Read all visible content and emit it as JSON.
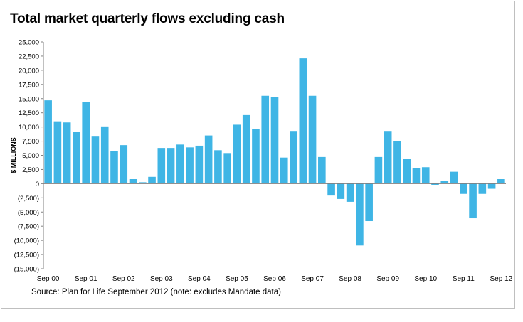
{
  "chart_data": {
    "type": "bar",
    "title": "Total market quarterly flows excluding cash",
    "ylabel": "$ MILLIONS",
    "xlabel": "",
    "source": "Source: Plan for Life September 2012 (note: excludes Mandate data)",
    "ylim": [
      -15000,
      25000
    ],
    "y_ticks": [
      {
        "value": 25000,
        "label": "25,000"
      },
      {
        "value": 22500,
        "label": "22,500"
      },
      {
        "value": 20000,
        "label": "20,000"
      },
      {
        "value": 17500,
        "label": "17,500"
      },
      {
        "value": 15000,
        "label": "15,000"
      },
      {
        "value": 12500,
        "label": "12,500"
      },
      {
        "value": 10000,
        "label": "10,000"
      },
      {
        "value": 7500,
        "label": "7,500"
      },
      {
        "value": 5000,
        "label": "5,000"
      },
      {
        "value": 2500,
        "label": "2,500"
      },
      {
        "value": 0,
        "label": "0"
      },
      {
        "value": -2500,
        "label": "(2,500)"
      },
      {
        "value": -5000,
        "label": "(5,000)"
      },
      {
        "value": -7500,
        "label": "(7,500)"
      },
      {
        "value": -10000,
        "label": "(10,000)"
      },
      {
        "value": -12500,
        "label": "(12,500)"
      },
      {
        "value": -15000,
        "label": "(15,000)"
      }
    ],
    "x_tick_labels": [
      {
        "index": 0,
        "label": "Sep 00"
      },
      {
        "index": 4,
        "label": "Sep 01"
      },
      {
        "index": 8,
        "label": "Sep 02"
      },
      {
        "index": 12,
        "label": "Sep 03"
      },
      {
        "index": 16,
        "label": "Sep 04"
      },
      {
        "index": 20,
        "label": "Sep 05"
      },
      {
        "index": 24,
        "label": "Sep 06"
      },
      {
        "index": 28,
        "label": "Sep 07"
      },
      {
        "index": 32,
        "label": "Sep 08"
      },
      {
        "index": 36,
        "label": "Sep 09"
      },
      {
        "index": 40,
        "label": "Sep 10"
      },
      {
        "index": 44,
        "label": "Sep 11"
      },
      {
        "index": 48,
        "label": "Sep 12"
      }
    ],
    "values": [
      14700,
      11000,
      10800,
      9100,
      14400,
      8300,
      10100,
      5700,
      6800,
      800,
      250,
      1200,
      6300,
      6300,
      6900,
      6400,
      6700,
      8500,
      5900,
      5400,
      10400,
      12100,
      9600,
      15500,
      15300,
      4600,
      9300,
      22100,
      15500,
      4700,
      -2100,
      -2700,
      -3200,
      -10900,
      -6600,
      4700,
      9300,
      7500,
      4400,
      2800,
      2900,
      -200,
      500,
      2100,
      -1800,
      -6100,
      -1800,
      -900,
      800
    ],
    "bar_color": "#3fb5e5",
    "grid": false,
    "legend": "none"
  }
}
